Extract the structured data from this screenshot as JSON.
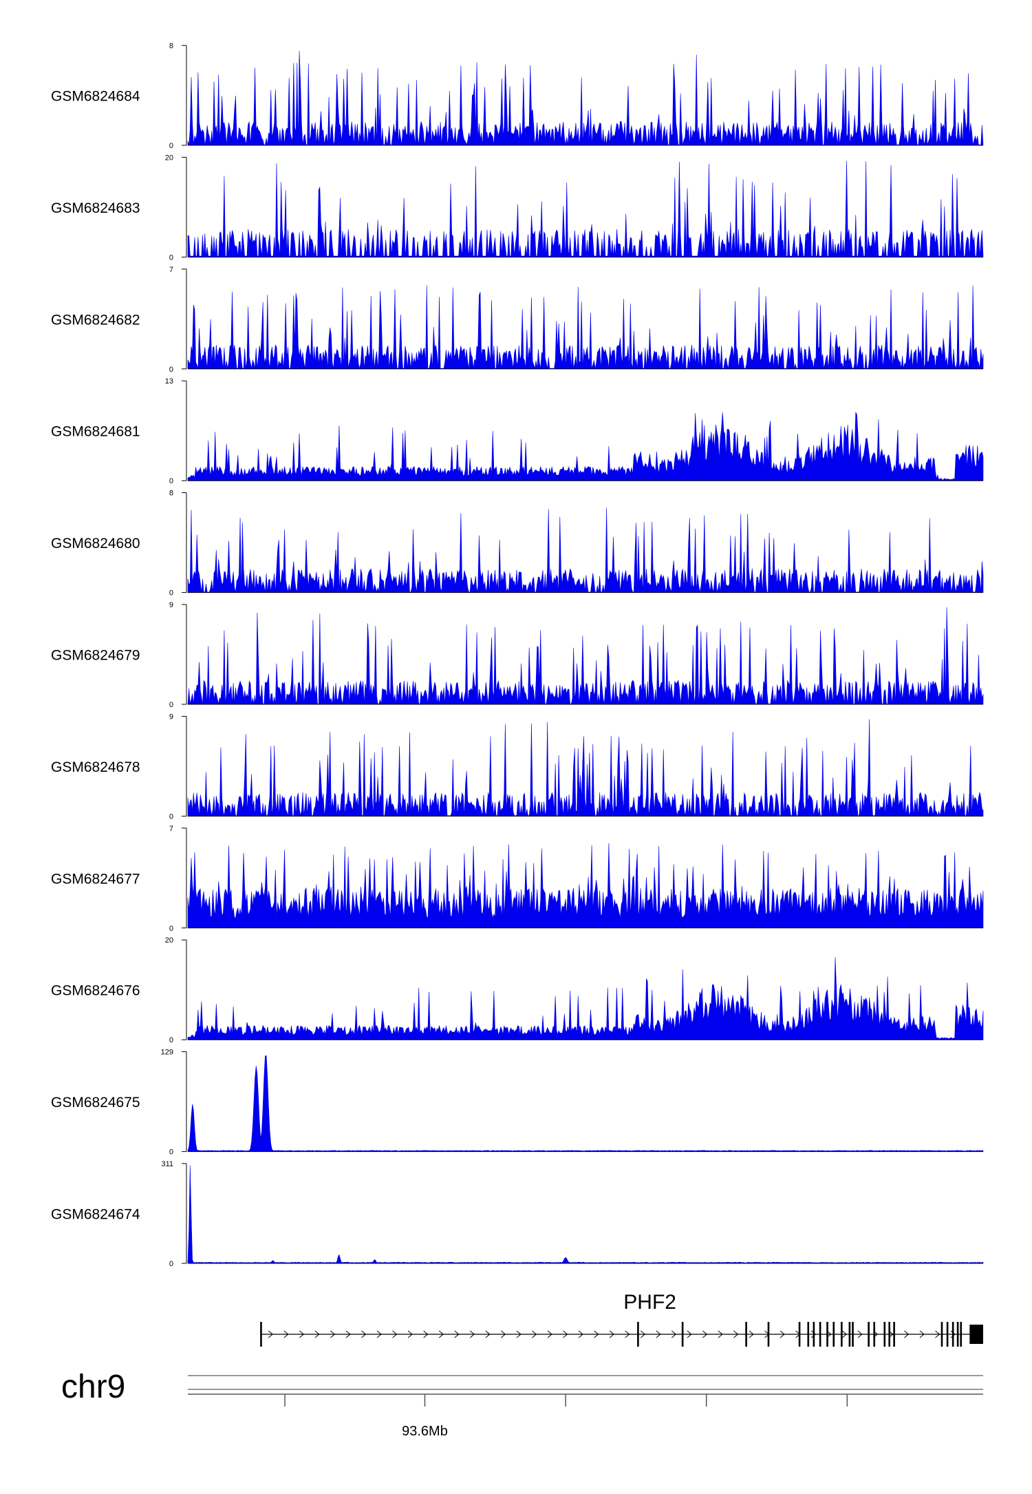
{
  "chart_data": {
    "type": "area",
    "title": "",
    "chromosome": "chr9",
    "colors": {
      "signal": "#0000ee",
      "axis": "#000000",
      "gene": "#000000"
    },
    "tracks": [
      {
        "name": "GSM6824684",
        "ymax": "8",
        "ymin": "0",
        "max": 8,
        "profile": "uniform-spiky"
      },
      {
        "name": "GSM6824683",
        "ymax": "20",
        "ymin": "0",
        "max": 20,
        "profile": "sparse-spiky"
      },
      {
        "name": "GSM6824682",
        "ymax": "7",
        "ymin": "0",
        "max": 7,
        "profile": "uniform-spiky"
      },
      {
        "name": "GSM6824681",
        "ymax": "13",
        "ymin": "0",
        "max": 13,
        "profile": "regional-broad"
      },
      {
        "name": "GSM6824680",
        "ymax": "8",
        "ymin": "0",
        "max": 8,
        "profile": "uniform-spiky"
      },
      {
        "name": "GSM6824679",
        "ymax": "9",
        "ymin": "0",
        "max": 9,
        "profile": "uniform-spiky"
      },
      {
        "name": "GSM6824678",
        "ymax": "9",
        "ymin": "0",
        "max": 9,
        "profile": "uniform-spiky"
      },
      {
        "name": "GSM6824677",
        "ymax": "7",
        "ymin": "0",
        "max": 7,
        "profile": "uniform-dense"
      },
      {
        "name": "GSM6824676",
        "ymax": "20",
        "ymin": "0",
        "max": 20,
        "profile": "regional-broad"
      },
      {
        "name": "GSM6824675",
        "ymax": "129",
        "ymin": "0",
        "max": 129,
        "profile": "peaks",
        "peaks": [
          {
            "pos": 0.006,
            "height": 0.48,
            "width": 0.003
          },
          {
            "pos": 0.086,
            "height": 0.86,
            "width": 0.004
          },
          {
            "pos": 0.098,
            "height": 0.99,
            "width": 0.004
          }
        ]
      },
      {
        "name": "GSM6824674",
        "ymax": "311",
        "ymin": "0",
        "max": 311,
        "profile": "peaks",
        "peaks": [
          {
            "pos": 0.003,
            "height": 0.99,
            "width": 0.0015
          },
          {
            "pos": 0.19,
            "height": 0.09,
            "width": 0.002
          },
          {
            "pos": 0.235,
            "height": 0.04,
            "width": 0.002
          },
          {
            "pos": 0.475,
            "height": 0.06,
            "width": 0.003
          },
          {
            "pos": 0.107,
            "height": 0.03,
            "width": 0.002
          }
        ]
      }
    ],
    "gene": {
      "name": "PHF2",
      "start": 0.092,
      "end": 1.0,
      "exons": [
        0.566,
        0.622,
        0.702,
        0.73,
        0.769,
        0.78,
        0.787,
        0.795,
        0.804,
        0.812,
        0.822,
        0.832,
        0.836,
        0.856,
        0.863,
        0.876,
        0.882,
        0.888,
        0.948,
        0.955,
        0.962,
        0.968,
        0.972
      ],
      "utr_end": 0.983
    },
    "axis": {
      "ticks": [
        0.122,
        0.298,
        0.475,
        0.652,
        0.829
      ],
      "tick_label": "93.6Mb",
      "label_tick_index": 1
    }
  }
}
